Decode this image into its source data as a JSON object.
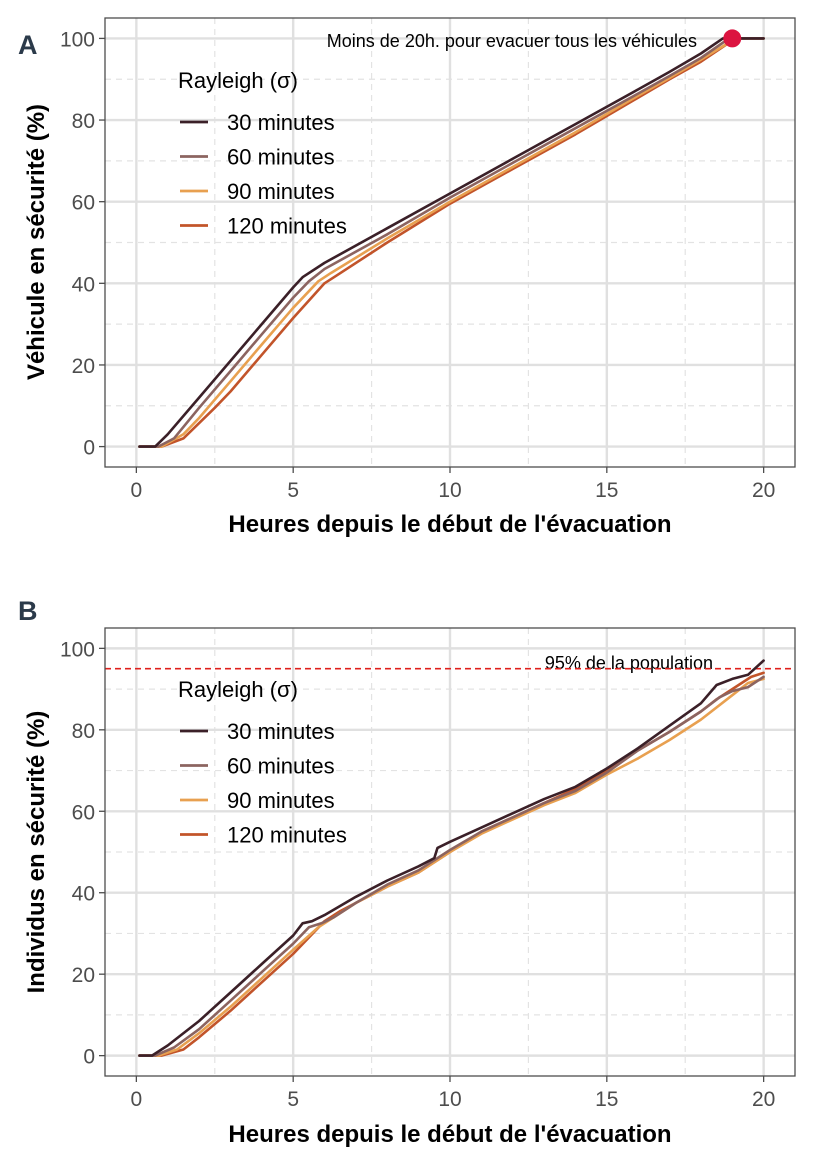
{
  "chart_data": [
    {
      "type": "line",
      "panel": "A",
      "xlabel": "Heures depuis le début de l'évacuation",
      "ylabel": "Véhicule en sécurité (%)",
      "xlim": [
        -1,
        21
      ],
      "ylim": [
        -5,
        105
      ],
      "xticks": [
        0,
        5,
        10,
        15,
        20
      ],
      "yticks": [
        0,
        20,
        40,
        60,
        80,
        100
      ],
      "legend_title": "Rayleigh (σ)",
      "annotation": "Moins de 20h. pour evacuer tous les véhicules",
      "highlight_point": {
        "x": 19,
        "y": 100
      },
      "series": [
        {
          "name": "30 minutes",
          "color": "#3b2028",
          "x": [
            0.1,
            0.6,
            1,
            2,
            3,
            4,
            5,
            5.3,
            6,
            8,
            10,
            12,
            14,
            16,
            17,
            18,
            18.7,
            19,
            20
          ],
          "y": [
            0,
            0,
            3,
            12,
            21,
            30,
            39,
            41.5,
            45,
            53.5,
            62,
            70.5,
            79,
            87.5,
            91.8,
            96.3,
            100,
            100,
            100
          ]
        },
        {
          "name": "60 minutes",
          "color": "#8c6460",
          "x": [
            0.1,
            0.7,
            1.2,
            2,
            3,
            4,
            5,
            5.5,
            6,
            8,
            10,
            12,
            14,
            16,
            17,
            18,
            18.8,
            19,
            20
          ],
          "y": [
            0,
            0,
            2,
            9.5,
            18.5,
            27.5,
            36.5,
            40.5,
            43.5,
            52,
            61,
            69.5,
            78,
            86.5,
            90.8,
            95.2,
            99.5,
            100,
            100
          ]
        },
        {
          "name": "90 minutes",
          "color": "#e8a050",
          "x": [
            0.1,
            0.8,
            1.5,
            2,
            3,
            4,
            5,
            5.8,
            6.2,
            8,
            10,
            12,
            14,
            16,
            17,
            18,
            18.9,
            19.2,
            20
          ],
          "y": [
            0,
            0,
            3,
            7,
            16,
            25,
            34,
            40.5,
            42.5,
            51,
            60,
            68.5,
            77,
            86,
            90.3,
            94.8,
            99,
            100,
            100
          ]
        },
        {
          "name": "120 minutes",
          "color": "#c2542a",
          "x": [
            0.1,
            0.8,
            1.5,
            2.5,
            3,
            4,
            5,
            6,
            6.4,
            8,
            10,
            12,
            14,
            16,
            17,
            18,
            19,
            19.2,
            20
          ],
          "y": [
            0,
            0,
            2,
            9.5,
            13.5,
            22.5,
            31.5,
            40,
            42,
            50,
            59.5,
            68,
            76.5,
            85.5,
            90,
            94.3,
            99.5,
            100,
            100
          ]
        }
      ]
    },
    {
      "type": "line",
      "panel": "B",
      "xlabel": "Heures depuis le début de l'évacuation",
      "ylabel": "Individus en sécurité (%)",
      "xlim": [
        -1,
        21
      ],
      "ylim": [
        -5,
        105
      ],
      "xticks": [
        0,
        5,
        10,
        15,
        20
      ],
      "yticks": [
        0,
        20,
        40,
        60,
        80,
        100
      ],
      "legend_title": "Rayleigh (σ)",
      "reference_line": {
        "y": 95,
        "label": "95% de la population",
        "color": "#e0201c"
      },
      "series": [
        {
          "name": "30 minutes",
          "color": "#3b2028",
          "x": [
            0.1,
            0.5,
            1,
            2,
            3,
            4,
            5,
            5.3,
            5.6,
            6,
            7,
            8,
            9,
            9.5,
            9.6,
            10,
            11,
            12,
            13,
            14,
            15,
            16,
            17,
            18,
            18.5,
            19,
            19.5,
            20
          ],
          "y": [
            0,
            0,
            2.5,
            8.5,
            15.5,
            22.5,
            29.5,
            32.5,
            33,
            34.5,
            39,
            43,
            46.5,
            48.5,
            51,
            52.5,
            56,
            59.5,
            63,
            66,
            70.5,
            75.5,
            81,
            86.5,
            91,
            92.5,
            93.5,
            97
          ]
        },
        {
          "name": "60 minutes",
          "color": "#8c6460",
          "x": [
            0.1,
            0.6,
            1.2,
            2,
            3,
            4,
            5,
            5.5,
            5.9,
            6.3,
            7,
            8,
            9,
            10,
            11,
            12,
            13,
            14,
            15,
            16,
            17,
            18,
            18.6,
            19,
            19.5,
            20
          ],
          "y": [
            0,
            0,
            2,
            6.5,
            13.5,
            20.5,
            27.5,
            31.5,
            32.5,
            34,
            37.5,
            42,
            45.5,
            50.5,
            55,
            58.5,
            62,
            65,
            69.5,
            75,
            79.5,
            84.5,
            88,
            89.5,
            90.5,
            93
          ]
        },
        {
          "name": "90 minutes",
          "color": "#e8a050",
          "x": [
            0.1,
            0.7,
            1.3,
            2,
            3,
            4,
            5,
            5.8,
            6.2,
            7,
            8,
            9,
            10,
            11,
            12,
            13,
            14,
            15,
            16,
            17,
            18,
            19,
            19.5,
            20
          ],
          "y": [
            0,
            0,
            1.5,
            5.5,
            12,
            19,
            26,
            31.5,
            33.5,
            37.5,
            41.5,
            45,
            50,
            54.5,
            58,
            61.5,
            64.5,
            69,
            73,
            77.5,
            82.5,
            88.5,
            91.5,
            92.5
          ]
        },
        {
          "name": "120 minutes",
          "color": "#c2542a",
          "x": [
            0.1,
            0.8,
            1.5,
            2,
            3,
            4,
            5,
            6,
            6.5,
            7,
            8,
            9,
            10,
            11,
            12,
            13,
            14,
            15,
            16,
            17,
            18,
            18.5,
            19,
            19.6,
            20
          ],
          "y": [
            0,
            0,
            1.5,
            4.5,
            11,
            18,
            25,
            33,
            35.5,
            37.5,
            41.5,
            45,
            50,
            55,
            58.5,
            62,
            65.5,
            70,
            75,
            79.5,
            84.5,
            87.5,
            90,
            93,
            94
          ]
        }
      ]
    }
  ]
}
